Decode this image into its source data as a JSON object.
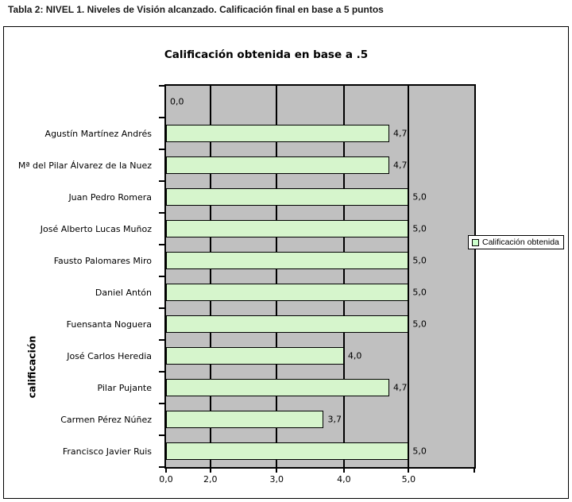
{
  "caption": "Tabla 2: NIVEL 1. Niveles de Visión alcanzado. Calificación final en base a 5 puntos",
  "legend": {
    "label": "Calificación obtenida"
  },
  "colors": {
    "bar_fill": "#d6f5cc",
    "bar_border": "#000000",
    "plot_bg": "#c0c0c0",
    "gridline": "#000000",
    "legend_swatch": "#ccffcc"
  },
  "chart_data": {
    "type": "bar",
    "orientation": "horizontal",
    "title": "Calificación obtenida en base a .5",
    "xlabel": "",
    "ylabel": "calificación",
    "legend_entries": [
      "Calificación obtenida"
    ],
    "legend_position": "right",
    "grid": true,
    "categories": [
      "",
      "Agustín Martínez Andrés",
      "Mª del Pilar Álvarez de la Nuez",
      "Juan Pedro Romera",
      "José Alberto Lucas Muñoz",
      "Fausto Palomares Miro",
      "Daniel Antón",
      "Fuensanta Noguera",
      "José Carlos Heredia",
      "Pilar Pujante",
      "Carmen Pérez Núñez",
      "Francisco Javier Ruis"
    ],
    "values": [
      0.0,
      4.7,
      4.7,
      5.0,
      5.0,
      5.0,
      5.0,
      5.0,
      4.0,
      4.7,
      3.7,
      5.0
    ],
    "value_labels": [
      "0,0",
      "4,7",
      "4,7",
      "5,0",
      "5,0",
      "5,0",
      "5,0",
      "5,0",
      "4,0",
      "4,7",
      "3,7",
      "5,0"
    ],
    "x_ticks": [
      {
        "label": "0,0",
        "value": 0,
        "pos": 0.0
      },
      {
        "label": "2,0",
        "value": 2,
        "pos": 0.1436
      },
      {
        "label": "3,0",
        "value": 3,
        "pos": 0.359
      },
      {
        "label": "4,0",
        "value": 4,
        "pos": 0.5769
      },
      {
        "label": "5,0",
        "value": 5,
        "pos": 0.7872
      },
      {
        "label": "",
        "value": null,
        "pos": 1.0
      }
    ]
  }
}
